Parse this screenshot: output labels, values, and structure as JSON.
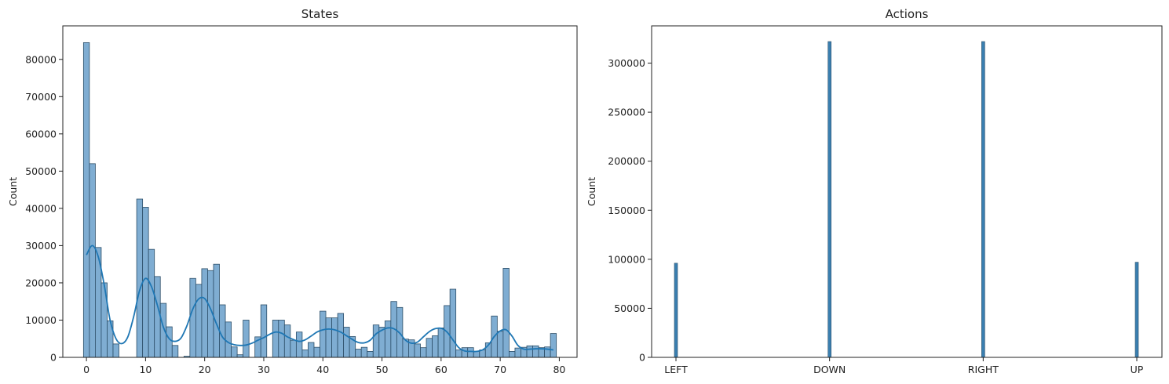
{
  "colors": {
    "bar_fill": "#7fadd2",
    "bar_edge": "#2c4e68",
    "kde_line": "#1f77b4",
    "action_bar": "#3a7fb0"
  },
  "chart_data": [
    {
      "type": "bar",
      "subtype": "histogram with kde",
      "title": "States",
      "xlabel": "",
      "ylabel": "Count",
      "xlim": [
        -4,
        83
      ],
      "ylim": [
        0,
        89000
      ],
      "xticks": [
        0,
        10,
        20,
        30,
        40,
        50,
        60,
        70,
        80
      ],
      "yticks": [
        0,
        10000,
        20000,
        30000,
        40000,
        50000,
        60000,
        70000,
        80000
      ],
      "xtick_labels": [
        "0",
        "10",
        "20",
        "30",
        "40",
        "50",
        "60",
        "70",
        "80"
      ],
      "ytick_labels": [
        "0",
        "10000",
        "20000",
        "30000",
        "40000",
        "50000",
        "60000",
        "70000",
        "80000"
      ],
      "bins": [
        {
          "x": 0,
          "count": 84500
        },
        {
          "x": 1,
          "count": 52000
        },
        {
          "x": 2,
          "count": 29500
        },
        {
          "x": 3,
          "count": 20000
        },
        {
          "x": 4,
          "count": 9800
        },
        {
          "x": 5,
          "count": 3600
        },
        {
          "x": 9,
          "count": 42500
        },
        {
          "x": 10,
          "count": 40300
        },
        {
          "x": 11,
          "count": 29000
        },
        {
          "x": 12,
          "count": 21700
        },
        {
          "x": 13,
          "count": 14500
        },
        {
          "x": 14,
          "count": 8200
        },
        {
          "x": 15,
          "count": 3200
        },
        {
          "x": 17,
          "count": 300
        },
        {
          "x": 18,
          "count": 21200
        },
        {
          "x": 19,
          "count": 19600
        },
        {
          "x": 20,
          "count": 23800
        },
        {
          "x": 21,
          "count": 23300
        },
        {
          "x": 22,
          "count": 25000
        },
        {
          "x": 23,
          "count": 14100
        },
        {
          "x": 24,
          "count": 9500
        },
        {
          "x": 25,
          "count": 2800
        },
        {
          "x": 26,
          "count": 700
        },
        {
          "x": 27,
          "count": 10000
        },
        {
          "x": 29,
          "count": 5500
        },
        {
          "x": 30,
          "count": 14100
        },
        {
          "x": 32,
          "count": 10000
        },
        {
          "x": 33,
          "count": 10000
        },
        {
          "x": 34,
          "count": 8700
        },
        {
          "x": 35,
          "count": 4600
        },
        {
          "x": 36,
          "count": 6800
        },
        {
          "x": 37,
          "count": 2000
        },
        {
          "x": 38,
          "count": 4000
        },
        {
          "x": 39,
          "count": 2700
        },
        {
          "x": 40,
          "count": 12400
        },
        {
          "x": 41,
          "count": 10600
        },
        {
          "x": 42,
          "count": 10600
        },
        {
          "x": 43,
          "count": 11800
        },
        {
          "x": 44,
          "count": 8100
        },
        {
          "x": 45,
          "count": 5600
        },
        {
          "x": 46,
          "count": 2200
        },
        {
          "x": 47,
          "count": 2700
        },
        {
          "x": 48,
          "count": 1600
        },
        {
          "x": 49,
          "count": 8700
        },
        {
          "x": 50,
          "count": 8100
        },
        {
          "x": 51,
          "count": 9800
        },
        {
          "x": 52,
          "count": 15000
        },
        {
          "x": 53,
          "count": 13400
        },
        {
          "x": 54,
          "count": 4900
        },
        {
          "x": 55,
          "count": 4700
        },
        {
          "x": 56,
          "count": 3600
        },
        {
          "x": 57,
          "count": 2600
        },
        {
          "x": 58,
          "count": 5100
        },
        {
          "x": 59,
          "count": 5800
        },
        {
          "x": 60,
          "count": 7900
        },
        {
          "x": 61,
          "count": 13900
        },
        {
          "x": 62,
          "count": 18300
        },
        {
          "x": 63,
          "count": 2000
        },
        {
          "x": 64,
          "count": 2600
        },
        {
          "x": 65,
          "count": 2600
        },
        {
          "x": 66,
          "count": 1600
        },
        {
          "x": 67,
          "count": 2000
        },
        {
          "x": 68,
          "count": 3900
        },
        {
          "x": 69,
          "count": 11100
        },
        {
          "x": 70,
          "count": 7000
        },
        {
          "x": 71,
          "count": 23900
        },
        {
          "x": 72,
          "count": 1600
        },
        {
          "x": 73,
          "count": 2500
        },
        {
          "x": 74,
          "count": 2700
        },
        {
          "x": 75,
          "count": 3100
        },
        {
          "x": 76,
          "count": 3100
        },
        {
          "x": 77,
          "count": 2600
        },
        {
          "x": 78,
          "count": 2800
        },
        {
          "x": 79,
          "count": 6400
        }
      ],
      "kde": {
        "x": [
          0,
          1,
          2,
          3,
          4,
          5,
          6,
          7,
          8,
          9,
          10,
          11,
          12,
          13,
          14,
          15,
          16,
          17,
          18,
          19,
          20,
          21,
          22,
          23,
          24,
          25,
          26,
          27,
          28,
          29,
          30,
          31,
          32,
          33,
          34,
          35,
          36,
          37,
          38,
          39,
          40,
          41,
          42,
          43,
          44,
          45,
          46,
          47,
          48,
          49,
          50,
          51,
          52,
          53,
          54,
          55,
          56,
          57,
          58,
          59,
          60,
          61,
          62,
          63,
          64,
          65,
          66,
          67,
          68,
          69,
          70,
          71,
          72,
          73,
          74,
          75,
          76,
          77,
          78,
          79
        ],
        "y": [
          27500,
          30000,
          27000,
          19500,
          10000,
          5000,
          3700,
          5500,
          11000,
          18000,
          21200,
          19000,
          14000,
          8200,
          5000,
          4300,
          5200,
          8500,
          13000,
          15700,
          15800,
          13000,
          9000,
          5500,
          4000,
          3400,
          3200,
          3300,
          3800,
          4600,
          5300,
          6200,
          6800,
          6500,
          5500,
          4800,
          4300,
          4700,
          5700,
          6800,
          7400,
          7600,
          7400,
          6800,
          5800,
          4800,
          4000,
          3900,
          4600,
          6300,
          7300,
          7900,
          7700,
          6500,
          4600,
          3800,
          4100,
          5500,
          6900,
          7700,
          7800,
          6800,
          4700,
          2600,
          1700,
          1600,
          1600,
          2000,
          3300,
          5600,
          7100,
          7400,
          5700,
          3200,
          2200,
          2200,
          2300,
          2300,
          2200,
          2000
        ]
      }
    },
    {
      "type": "bar",
      "title": "Actions",
      "xlabel": "",
      "ylabel": "Count",
      "categories": [
        "LEFT",
        "DOWN",
        "RIGHT",
        "UP"
      ],
      "values": [
        96000,
        322000,
        322000,
        97000
      ],
      "ylim": [
        0,
        338000
      ],
      "yticks": [
        0,
        50000,
        100000,
        150000,
        200000,
        250000,
        300000
      ],
      "ytick_labels": [
        "0",
        "50000",
        "100000",
        "150000",
        "200000",
        "250000",
        "300000"
      ]
    }
  ]
}
